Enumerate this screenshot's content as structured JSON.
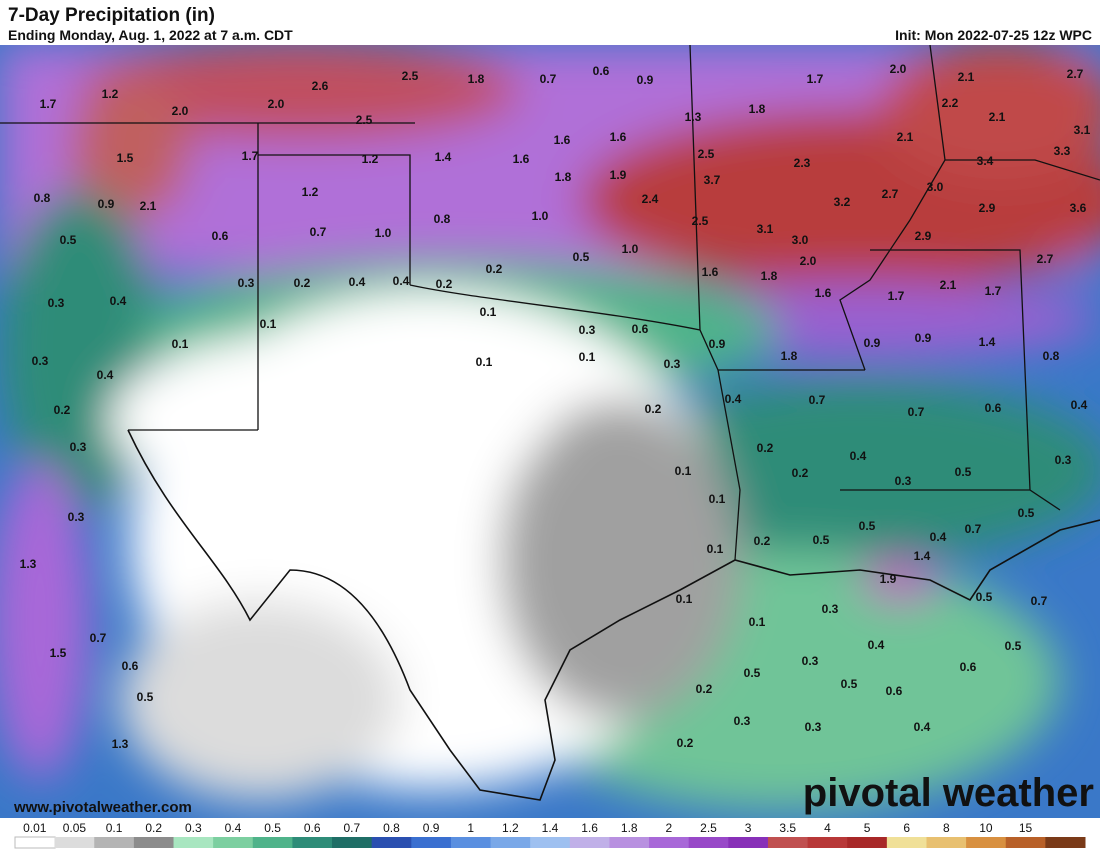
{
  "title": "7-Day Precipitation (in)",
  "subtitle": "Ending Monday, Aug. 1, 2022 at 7 a.m. CDT",
  "init": "Init: Mon 2022-07-25 12z WPC",
  "website": "www.pivotalweather.com",
  "brand": "pivotal weather",
  "map_labels": [
    "1.7",
    "1.2",
    "2.0",
    "2.6",
    "2.0",
    "2.5",
    "2.5",
    "1.8",
    "0.7",
    "0.6",
    "0.9",
    "1.3",
    "1.8",
    "1.7",
    "2.0",
    "2.1",
    "2.7",
    "2.2",
    "2.1",
    "3.1",
    "3.3",
    "1.5",
    "1.7",
    "1.2",
    "1.4",
    "1.6",
    "1.6",
    "1.6",
    "1.8",
    "1.9",
    "2.5",
    "2.3",
    "2.1",
    "3.4",
    "0.8",
    "0.9",
    "2.1",
    "1.2",
    "3.7",
    "2.4",
    "3.2",
    "2.7",
    "3.0",
    "2.9",
    "3.6",
    "0.8",
    "1.0",
    "2.5",
    "3.1",
    "0.6",
    "0.7",
    "1.0",
    "0.5",
    "1.0",
    "0.5",
    "3.0",
    "2.9",
    "1.6",
    "1.8",
    "2.0",
    "2.7",
    "0.3",
    "0.2",
    "0.4",
    "0.4",
    "0.2",
    "0.2",
    "2.1",
    "1.7",
    "1.6",
    "1.7",
    "0.3",
    "0.4",
    "0.1",
    "0.1",
    "0.3",
    "0.6",
    "0.1",
    "0.9",
    "1.8",
    "0.9",
    "0.9",
    "1.4",
    "0.8",
    "0.1",
    "0.1",
    "0.3",
    "0.3",
    "0.4",
    "0.4",
    "0.7",
    "0.2",
    "0.2",
    "0.7",
    "0.6",
    "0.4",
    "0.3",
    "0.2",
    "0.4",
    "0.1",
    "0.2",
    "0.5",
    "0.3",
    "0.3",
    "0.1",
    "0.3",
    "0.5",
    "0.4",
    "0.7",
    "0.5",
    "0.2",
    "0.5",
    "1.4",
    "0.1",
    "1.3",
    "1.9",
    "0.1",
    "0.5",
    "0.7",
    "0.3",
    "0.1",
    "0.7",
    "0.4",
    "1.5",
    "0.5",
    "0.6",
    "0.3",
    "0.6",
    "0.5",
    "0.5",
    "0.2",
    "0.6",
    "0.5",
    "0.3",
    "0.3",
    "0.4",
    "1.3",
    "0.2"
  ],
  "colorbar": {
    "labels": [
      "0.01",
      "0.05",
      "0.1",
      "0.2",
      "0.3",
      "0.4",
      "0.5",
      "0.6",
      "0.7",
      "0.8",
      "0.9",
      "1",
      "1.2",
      "1.4",
      "1.6",
      "1.8",
      "2",
      "2.5",
      "3",
      "3.5",
      "4",
      "5",
      "6",
      "8",
      "10",
      "15",
      ""
    ],
    "colors": [
      "#ffffff",
      "#dcdcdc",
      "#b4b4b4",
      "#8c8c8c",
      "#a8e6c0",
      "#7ccfa0",
      "#4fb38a",
      "#2e8c78",
      "#1f6e66",
      "#2a4fb0",
      "#3a6fd0",
      "#5a8fe0",
      "#7aa8e8",
      "#9ec0f0",
      "#c0b0e8",
      "#b890e0",
      "#a868d8",
      "#9848c8",
      "#8830b8",
      "#c05050",
      "#b83838",
      "#a82828",
      "#f0e098",
      "#e8c070",
      "#d89040",
      "#b86028",
      "#7a3a18"
    ]
  }
}
